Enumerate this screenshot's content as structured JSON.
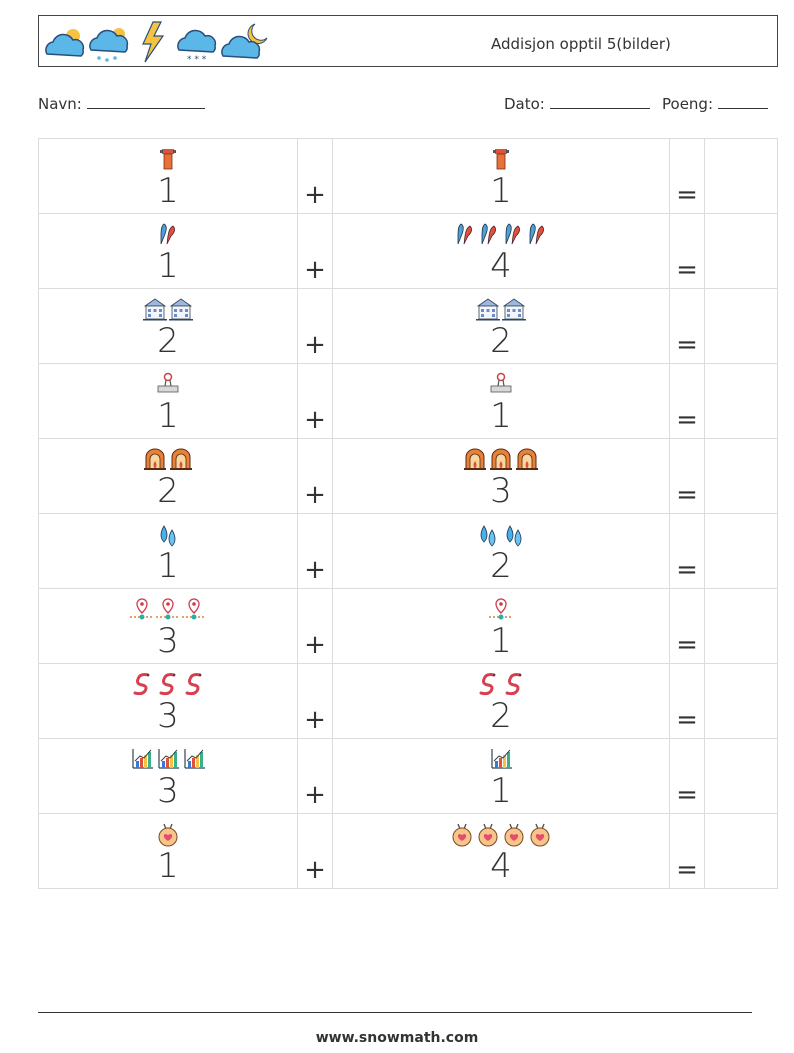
{
  "header": {
    "title": "Addisjon opptil 5(bilder)",
    "weather_icons": [
      "partly-sunny-cloud-icon",
      "rain-sun-cloud-icon",
      "lightning-icon",
      "snow-cloud-icon",
      "moon-cloud-icon"
    ]
  },
  "form": {
    "name_label": "Navn:",
    "date_label": "Dato:",
    "score_label": "Poeng:"
  },
  "operators": {
    "plus": "+",
    "equals": "="
  },
  "problems": [
    {
      "left": {
        "count": "1",
        "icon": "pin-board-icon"
      },
      "right": {
        "count": "1",
        "icon": "pin-board-icon"
      }
    },
    {
      "left": {
        "count": "1",
        "icon": "juggling-club-icon"
      },
      "right": {
        "count": "4",
        "icon": "juggling-club-icon"
      }
    },
    {
      "left": {
        "count": "2",
        "icon": "building-icon"
      },
      "right": {
        "count": "2",
        "icon": "building-icon"
      }
    },
    {
      "left": {
        "count": "1",
        "icon": "paper-clip-board-icon"
      },
      "right": {
        "count": "1",
        "icon": "paper-clip-board-icon"
      }
    },
    {
      "left": {
        "count": "2",
        "icon": "fireplace-icon"
      },
      "right": {
        "count": "3",
        "icon": "fireplace-icon"
      }
    },
    {
      "left": {
        "count": "1",
        "icon": "water-drops-icon"
      },
      "right": {
        "count": "2",
        "icon": "water-drops-icon"
      }
    },
    {
      "left": {
        "count": "3",
        "icon": "location-line-icon"
      },
      "right": {
        "count": "1",
        "icon": "location-line-icon"
      }
    },
    {
      "left": {
        "count": "3",
        "icon": "worm-icon"
      },
      "right": {
        "count": "2",
        "icon": "worm-icon"
      }
    },
    {
      "left": {
        "count": "3",
        "icon": "bar-chart-icon"
      },
      "right": {
        "count": "1",
        "icon": "bar-chart-icon"
      }
    },
    {
      "left": {
        "count": "1",
        "icon": "heart-medal-icon"
      },
      "right": {
        "count": "4",
        "icon": "heart-medal-icon"
      }
    }
  ],
  "footer": {
    "url": "www.snowmath.com"
  }
}
